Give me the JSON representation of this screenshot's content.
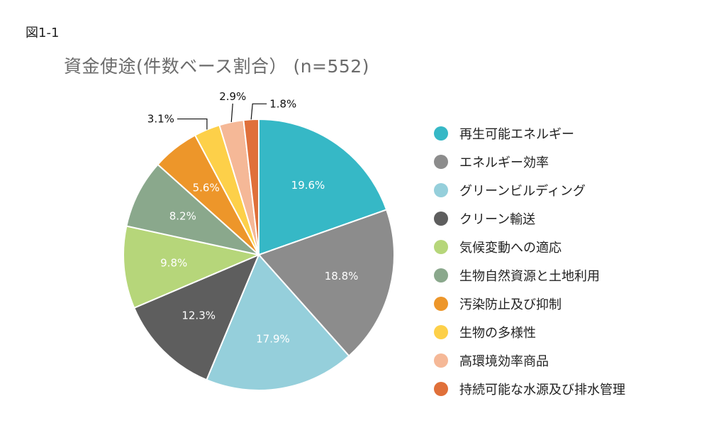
{
  "figure_label": "図1-1",
  "chart_data": {
    "type": "pie",
    "title": "資金使途(件数ベース割合） (n=552)",
    "legend_position": "right",
    "slices": [
      {
        "label": "再生可能エネルギー",
        "value": 19.6,
        "display": "19.6%",
        "color": "#36B8C6",
        "label_color": "#ffffff"
      },
      {
        "label": "エネルギー効率",
        "value": 18.8,
        "display": "18.8%",
        "color": "#8C8C8C",
        "label_color": "#ffffff"
      },
      {
        "label": "グリーンビルディング",
        "value": 17.9,
        "display": "17.9%",
        "color": "#95CFDB",
        "label_color": "#ffffff"
      },
      {
        "label": "クリーン輸送",
        "value": 12.3,
        "display": "12.3%",
        "color": "#5E5E5E",
        "label_color": "#ffffff"
      },
      {
        "label": "気候変動への適応",
        "value": 9.8,
        "display": "9.8%",
        "color": "#B6D67A",
        "label_color": "#ffffff"
      },
      {
        "label": "生物自然資源と土地利用",
        "value": 8.2,
        "display": "8.2%",
        "color": "#8AA88C",
        "label_color": "#ffffff"
      },
      {
        "label": "汚染防止及び抑制",
        "value": 5.6,
        "display": "5.6%",
        "color": "#ED962A",
        "label_color": "#ffffff"
      },
      {
        "label": "生物の多様性",
        "value": 3.1,
        "display": "3.1%",
        "color": "#FDD049",
        "label_color": "#222222"
      },
      {
        "label": "高環境効率商品",
        "value": 2.9,
        "display": "2.9%",
        "color": "#F5B897",
        "label_color": "#222222"
      },
      {
        "label": "持続可能な水源及び排水管理",
        "value": 1.8,
        "display": "1.8%",
        "color": "#E0703A",
        "label_color": "#222222"
      }
    ]
  }
}
